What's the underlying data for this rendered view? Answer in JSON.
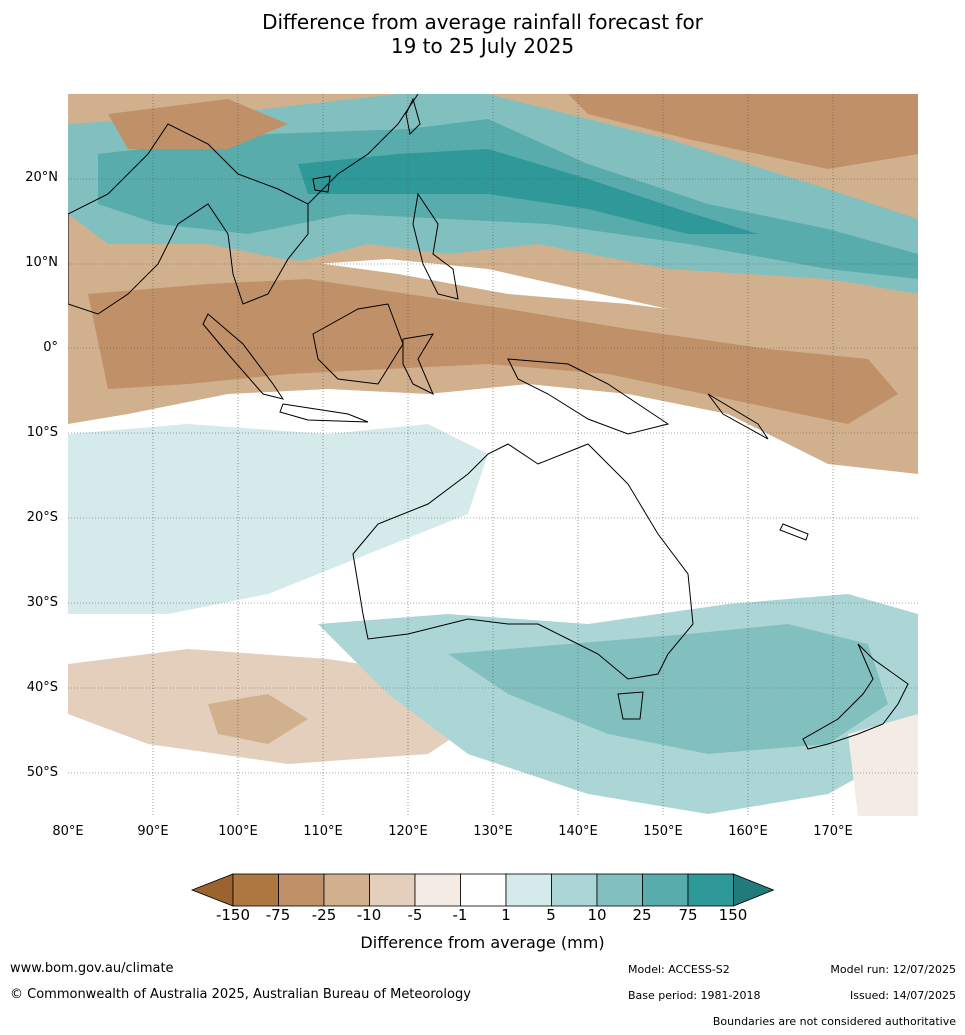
{
  "title_line1": "Difference from average rainfall forecast for",
  "title_line2": "19 to 25 July 2025",
  "map": {
    "lat_ticks": [
      "20°N",
      "10°N",
      "0°",
      "10°S",
      "20°S",
      "30°S",
      "40°S",
      "50°S"
    ],
    "lon_ticks": [
      "80°E",
      "90°E",
      "100°E",
      "110°E",
      "120°E",
      "130°E",
      "140°E",
      "150°E",
      "160°E",
      "170°E"
    ]
  },
  "colorbar": {
    "labels": [
      "-150",
      "-75",
      "-25",
      "-10",
      "-5",
      "-1",
      "1",
      "5",
      "10",
      "25",
      "75",
      "150"
    ],
    "colors": [
      "#9b6330",
      "#ad7841",
      "#c09068",
      "#d1b08e",
      "#e4cfbd",
      "#f4ebe5",
      "#ffffff",
      "#d5eaea",
      "#acd6d6",
      "#82c0c0",
      "#58acac",
      "#2f9898",
      "#227a7a"
    ],
    "title": "Difference from average (mm)"
  },
  "footer": {
    "url": "www.bom.gov.au/climate",
    "copyright": "© Commonwealth of Australia 2025, Australian Bureau of Meteorology",
    "model": "Model: ACCESS-S2",
    "base_period": "Base period: 1981-2018",
    "model_run": "Model run: 12/07/2025",
    "issued": "Issued: 14/07/2025",
    "disclaimer": "Boundaries are not considered authoritative"
  }
}
